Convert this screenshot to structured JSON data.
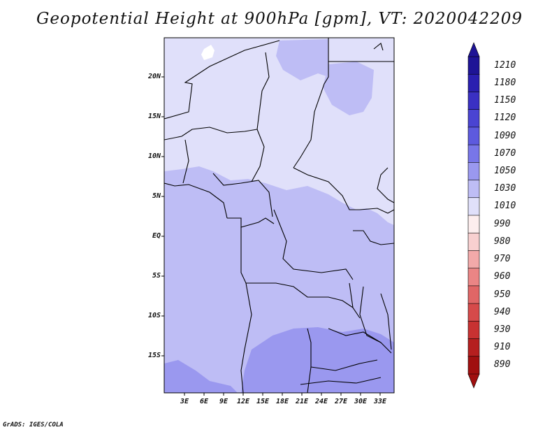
{
  "title": "Geopotential Height at 900hPa [gpm], VT: 2020042209",
  "footer": "GrADS: IGES/COLA",
  "lat_labels": [
    "20N",
    "15N",
    "10N",
    "5N",
    "EQ",
    "5S",
    "10S",
    "15S"
  ],
  "lon_labels": [
    "3E",
    "6E",
    "9E",
    "12E",
    "15E",
    "18E",
    "21E",
    "24E",
    "27E",
    "30E",
    "33E"
  ],
  "legend": {
    "levels": [
      "1210",
      "1180",
      "1150",
      "1120",
      "1090",
      "1070",
      "1050",
      "1030",
      "1010",
      "990",
      "980",
      "970",
      "960",
      "950",
      "940",
      "930",
      "910",
      "890"
    ],
    "colors": [
      "#1e1496",
      "#2a1fb0",
      "#3a30c3",
      "#4a44d2",
      "#5d5ade",
      "#7876e8",
      "#9a98ef",
      "#bebdf5",
      "#e0e0fa",
      "#fdeeee",
      "#f8d0d0",
      "#f2a9a9",
      "#ea8585",
      "#e06666",
      "#d64a4a",
      "#c83232",
      "#b51f1f",
      "#a01010"
    ]
  },
  "map_fields": {
    "colors": {
      "level_1010_1030": "#e0e0fa",
      "level_1030_1050": "#bebdf5",
      "level_1050_1070": "#9a98ef",
      "below_1010": "#ffffff",
      "boundaries": "#000000"
    }
  }
}
